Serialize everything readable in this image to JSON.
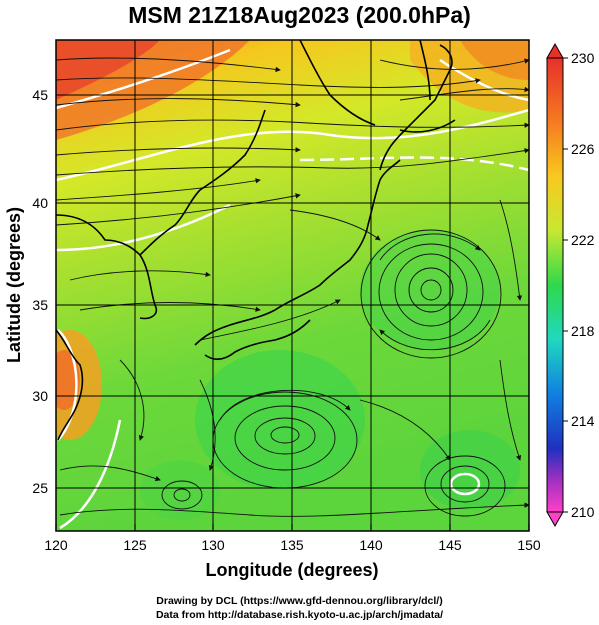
{
  "title": "MSM 21Z18Aug2023 (200.0hPa)",
  "axes": {
    "xlabel": "Longitude (degrees)",
    "ylabel": "Latitude  (degrees)",
    "x_ticks": [
      "120",
      "125",
      "130",
      "135",
      "140",
      "145",
      "150"
    ],
    "y_ticks": [
      "25",
      "30",
      "35",
      "40",
      "45"
    ]
  },
  "colorbar": {
    "labels": [
      "230",
      "226",
      "222",
      "218",
      "214",
      "210"
    ],
    "min": 210,
    "max": 230
  },
  "footer": {
    "line1": "Drawing by DCL (https://www.gfd-dennou.org/library/dcl/)",
    "line2": "Data from http://database.rish.kyoto-u.ac.jp/arch/jmadata/"
  },
  "colors": {
    "high": "#e8302a",
    "mid_high": "#f7a21e",
    "mid": "#c8e832",
    "low": "#3fd84a",
    "cold": "#1040d0",
    "coldest": "#ff40c0"
  }
}
